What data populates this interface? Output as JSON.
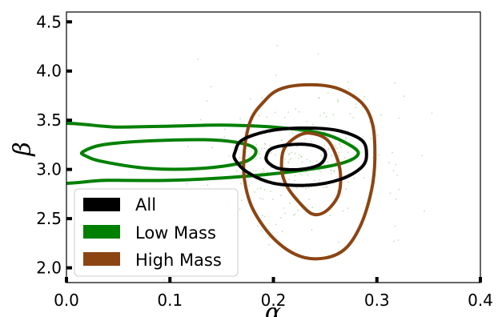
{
  "chart_data": {
    "type": "contour",
    "title": "",
    "xlabel": "α",
    "ylabel": "β",
    "xlim": [
      0.0,
      0.4
    ],
    "ylim": [
      1.85,
      4.6
    ],
    "x_ticks": [
      0.0,
      0.1,
      0.2,
      0.3,
      0.4
    ],
    "x_tick_labels": [
      "0.0",
      "0.1",
      "0.2",
      "0.3",
      "0.4"
    ],
    "y_ticks": [
      2.0,
      2.5,
      3.0,
      3.5,
      4.0,
      4.5
    ],
    "y_tick_labels": [
      "2.0",
      "2.5",
      "3.0",
      "3.5",
      "4.0",
      "4.5"
    ],
    "grid": false,
    "legend_position": "lower-left",
    "legend": [
      {
        "label": "All",
        "color": "#000000"
      },
      {
        "label": "Low Mass",
        "color": "#008000"
      },
      {
        "label": "High Mass",
        "color": "#8b4513"
      }
    ],
    "scatter_color": "#b5d6a7",
    "series": [
      {
        "name": "All",
        "color": "#000000",
        "contours": [
          {
            "level": "outer",
            "points": [
              [
                0.163,
                3.18
              ],
              [
                0.17,
                3.3
              ],
              [
                0.195,
                3.39
              ],
              [
                0.225,
                3.42
              ],
              [
                0.26,
                3.4
              ],
              [
                0.285,
                3.3
              ],
              [
                0.29,
                3.15
              ],
              [
                0.285,
                3.02
              ],
              [
                0.265,
                2.9
              ],
              [
                0.235,
                2.84
              ],
              [
                0.2,
                2.86
              ],
              [
                0.175,
                2.97
              ],
              [
                0.163,
                3.1
              ]
            ]
          },
          {
            "level": "inner",
            "points": [
              [
                0.193,
                3.13
              ],
              [
                0.198,
                3.21
              ],
              [
                0.215,
                3.25
              ],
              [
                0.235,
                3.25
              ],
              [
                0.248,
                3.2
              ],
              [
                0.25,
                3.12
              ],
              [
                0.243,
                3.04
              ],
              [
                0.225,
                3.0
              ],
              [
                0.205,
                3.01
              ],
              [
                0.195,
                3.07
              ]
            ]
          }
        ]
      },
      {
        "name": "Low Mass",
        "color": "#008000",
        "contours": [
          {
            "level": "outer",
            "points": [
              [
                -0.02,
                3.43
              ],
              [
                0.05,
                3.43
              ],
              [
                0.1,
                3.44
              ],
              [
                0.15,
                3.45
              ],
              [
                0.2,
                3.43
              ],
              [
                0.245,
                3.37
              ],
              [
                0.27,
                3.27
              ],
              [
                0.282,
                3.16
              ],
              [
                0.265,
                3.06
              ],
              [
                0.22,
                2.98
              ],
              [
                0.16,
                2.92
              ],
              [
                0.1,
                2.89
              ],
              [
                0.04,
                2.89
              ],
              [
                -0.02,
                2.9
              ]
            ]
          },
          {
            "level": "inner",
            "points": [
              [
                0.016,
                3.18
              ],
              [
                0.035,
                3.25
              ],
              [
                0.08,
                3.29
              ],
              [
                0.14,
                3.3
              ],
              [
                0.175,
                3.25
              ],
              [
                0.183,
                3.17
              ],
              [
                0.17,
                3.07
              ],
              [
                0.13,
                3.01
              ],
              [
                0.08,
                3.01
              ],
              [
                0.035,
                3.08
              ],
              [
                0.018,
                3.14
              ]
            ]
          }
        ]
      },
      {
        "name": "High Mass",
        "color": "#8b4513",
        "contours": [
          {
            "level": "outer",
            "points": [
              [
                0.178,
                3.5
              ],
              [
                0.19,
                3.68
              ],
              [
                0.205,
                3.81
              ],
              [
                0.23,
                3.86
              ],
              [
                0.26,
                3.83
              ],
              [
                0.285,
                3.68
              ],
              [
                0.296,
                3.45
              ],
              [
                0.298,
                3.1
              ],
              [
                0.295,
                2.8
              ],
              [
                0.285,
                2.45
              ],
              [
                0.27,
                2.2
              ],
              [
                0.25,
                2.1
              ],
              [
                0.225,
                2.12
              ],
              [
                0.2,
                2.3
              ],
              [
                0.18,
                2.6
              ],
              [
                0.172,
                2.9
              ],
              [
                0.172,
                3.2
              ]
            ]
          },
          {
            "level": "inner",
            "points": [
              [
                0.208,
                3.0
              ],
              [
                0.21,
                3.2
              ],
              [
                0.222,
                3.33
              ],
              [
                0.235,
                3.37
              ],
              [
                0.252,
                3.3
              ],
              [
                0.262,
                3.1
              ],
              [
                0.265,
                2.9
              ],
              [
                0.262,
                2.72
              ],
              [
                0.25,
                2.57
              ],
              [
                0.237,
                2.55
              ],
              [
                0.222,
                2.7
              ],
              [
                0.212,
                2.85
              ]
            ]
          }
        ]
      }
    ]
  }
}
